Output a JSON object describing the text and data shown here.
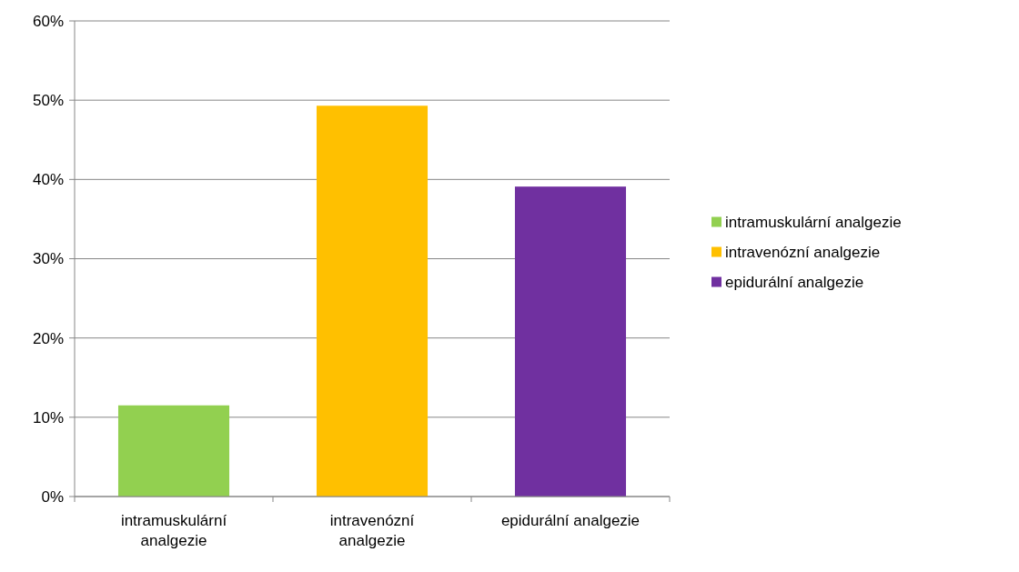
{
  "chart_data": {
    "type": "bar",
    "categories": [
      "intramuskulární analgezie",
      "intravenózní analgezie",
      "epidurální analgezie"
    ],
    "series": [
      {
        "name": "intramuskulární analgezie",
        "color": "#92d050",
        "values": [
          11.5,
          null,
          null
        ]
      },
      {
        "name": "intravenózní analgezie",
        "color": "#ffc000",
        "values": [
          null,
          49.3,
          null
        ]
      },
      {
        "name": "epidurální analgezie",
        "color": "#7030a0",
        "values": [
          null,
          null,
          39.1
        ]
      }
    ],
    "stacked": true,
    "ylim": [
      0,
      60
    ],
    "yticks": [
      {
        "value": 0,
        "label": "0%"
      },
      {
        "value": 10,
        "label": "10%"
      },
      {
        "value": 20,
        "label": "20%"
      },
      {
        "value": 30,
        "label": "30%"
      },
      {
        "value": 40,
        "label": "40%"
      },
      {
        "value": 50,
        "label": "50%"
      },
      {
        "value": 60,
        "label": "60%"
      }
    ],
    "grid": "y",
    "legend": "right"
  }
}
